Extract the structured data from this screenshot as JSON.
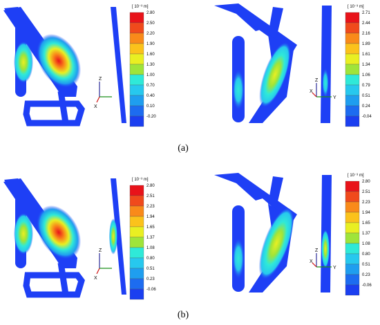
{
  "panels": [
    {
      "id": "a",
      "caption": "(a)",
      "legends": [
        {
          "unit": "[ 10⁻³ m]",
          "labels": [
            "2.80",
            "2.50",
            "2.20",
            "1.90",
            "1.60",
            "1.30",
            "1.00",
            "0.70",
            "0.40",
            "0.10",
            "-0.20"
          ]
        },
        {
          "unit": "[ 10⁻³ m]",
          "labels": [
            "2.71",
            "2.44",
            "2.16",
            "1.89",
            "1.61",
            "1.34",
            "1.06",
            "0.79",
            "0.51",
            "0.24",
            "-0.04"
          ]
        }
      ],
      "axes": [
        {
          "labels": [
            "Z",
            "X"
          ]
        },
        {
          "labels": [
            "Z",
            "X",
            "Y"
          ]
        }
      ]
    },
    {
      "id": "b",
      "caption": "(b)",
      "legends": [
        {
          "unit": "[ 10⁻³ m]",
          "labels": [
            "2.80",
            "2.51",
            "2.23",
            "1.94",
            "1.65",
            "1.37",
            "1.08",
            "0.80",
            "0.51",
            "0.23",
            "-0.06"
          ]
        },
        {
          "unit": "[ 10⁻³ m]",
          "labels": [
            "2.80",
            "2.51",
            "2.23",
            "1.94",
            "1.65",
            "1.37",
            "1.08",
            "0.80",
            "0.51",
            "0.23",
            "-0.06"
          ]
        }
      ],
      "axes": [
        {
          "labels": [
            "Z",
            "X"
          ]
        },
        {
          "labels": [
            "Z",
            "X",
            "Y"
          ]
        }
      ]
    }
  ],
  "colors": {
    "scale": [
      "#e8131a",
      "#f04a1c",
      "#f98a1a",
      "#fbc21b",
      "#e9ef22",
      "#9fe43a",
      "#2fe9d8",
      "#27c8ee",
      "#1f9eef",
      "#1d6cf0",
      "#1b3ff0"
    ],
    "structure_blue": "#1e3ff5"
  }
}
